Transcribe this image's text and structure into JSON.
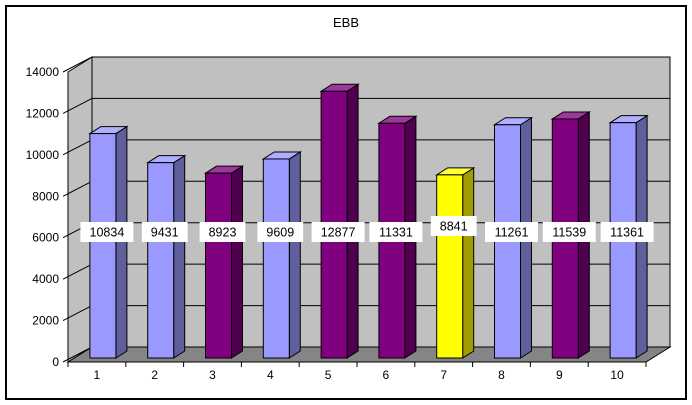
{
  "frame": {
    "background": "#FFFFFF",
    "border_color": "#000000"
  },
  "chart_data": {
    "type": "bar",
    "variant": "3d-column",
    "title": "EBB",
    "categories": [
      "1",
      "2",
      "3",
      "4",
      "5",
      "6",
      "7",
      "8",
      "9",
      "10"
    ],
    "values": [
      10834,
      9431,
      8923,
      9609,
      12877,
      11331,
      8841,
      11261,
      11539,
      11361
    ],
    "data_labels": [
      "10834",
      "9431",
      "8923",
      "9609",
      "12877",
      "11331",
      "8841",
      "11261",
      "11539",
      "11361"
    ],
    "point_colors": [
      "#9999FF",
      "#9999FF",
      "#800080",
      "#9999FF",
      "#800080",
      "#800080",
      "#FFFF00",
      "#9999FF",
      "#800080",
      "#9999FF"
    ],
    "xlabel": "",
    "ylabel": "",
    "ylim": [
      0,
      14000
    ],
    "ytick_step": 2000,
    "ytick_labels": [
      "0",
      "2000",
      "4000",
      "6000",
      "8000",
      "10000",
      "12000",
      "14000"
    ],
    "grid": true,
    "legend": "none",
    "colors": {
      "wall": "#C0C0C0",
      "floor": "#858585",
      "gridline": "#000000",
      "outline": "#000000",
      "label_background": "#FFFFFF",
      "text": "#000000"
    }
  }
}
